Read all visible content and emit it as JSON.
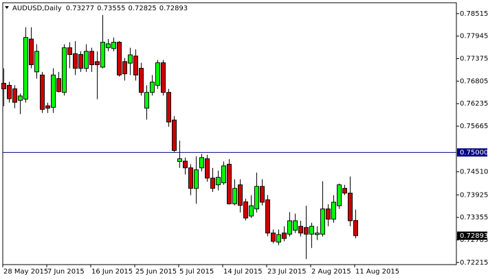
{
  "chart_data": {
    "type": "candlestick",
    "title": "AUDUSD,Daily",
    "categories": [
      "28 May 2015",
      null,
      null,
      null,
      null,
      null,
      null,
      null,
      "7 Jun 2015",
      null,
      null,
      null,
      null,
      null,
      null,
      null,
      "16 Jun 2015",
      null,
      null,
      null,
      null,
      null,
      null,
      null,
      "25 Jun 2015",
      null,
      null,
      null,
      null,
      null,
      null,
      null,
      "5 Jul 2015",
      null,
      null,
      null,
      null,
      null,
      null,
      null,
      "14 Jul 2015",
      null,
      null,
      null,
      null,
      null,
      null,
      null,
      "23 Jul 2015",
      null,
      null,
      null,
      null,
      null,
      null,
      null,
      "2 Aug 2015",
      null,
      null,
      null,
      null,
      null,
      null,
      null,
      "11 Aug 2015"
    ],
    "open": [
      0.7675,
      0.767,
      0.7661,
      0.7632,
      0.7635,
      0.7787,
      0.7704,
      0.7696,
      0.7618,
      0.7614,
      0.7687,
      0.7652,
      0.7765,
      0.775,
      0.7748,
      0.7713,
      0.7756,
      0.773,
      0.7716,
      0.7765,
      0.7763,
      0.7779,
      0.773,
      0.7726,
      0.7744,
      0.7713,
      0.7612,
      0.7652,
      0.767,
      0.7727,
      0.7652,
      0.7582,
      0.7477,
      0.7478,
      0.7461,
      0.7409,
      0.7461,
      0.7484,
      0.7435,
      0.7418,
      0.7423,
      0.747,
      0.737,
      0.7418,
      0.7375,
      0.7339,
      0.7357,
      0.7414,
      0.738,
      0.7296,
      0.7273,
      0.7296,
      0.7293,
      0.7303,
      0.7313,
      0.731,
      0.7293,
      0.7292,
      0.7293,
      0.7357,
      0.7331,
      0.7365,
      0.7409,
      0.7397,
      0.73277
    ],
    "high": [
      0.7713,
      0.7679,
      0.767,
      0.7649,
      0.7817,
      0.7817,
      0.7774,
      0.7704,
      0.7626,
      0.7713,
      0.7704,
      0.7774,
      0.7779,
      0.7782,
      0.7756,
      0.7774,
      0.7765,
      0.7756,
      0.7848,
      0.7787,
      0.7791,
      0.7782,
      0.7739,
      0.7765,
      0.7761,
      0.7727,
      0.767,
      0.7696,
      0.7734,
      0.7734,
      0.7661,
      0.7592,
      0.753,
      0.7487,
      0.747,
      0.749,
      0.7496,
      0.7494,
      0.7461,
      0.7454,
      0.7477,
      0.7483,
      0.7432,
      0.7432,
      0.7383,
      0.7392,
      0.7449,
      0.7432,
      0.7392,
      0.7305,
      0.7305,
      0.7313,
      0.7349,
      0.7345,
      0.7327,
      0.7365,
      0.7322,
      0.7313,
      0.7427,
      0.7369,
      0.7392,
      0.7421,
      0.7418,
      0.7439,
      0.73555
    ],
    "low": [
      0.7617,
      0.7626,
      0.7612,
      0.7597,
      0.7626,
      0.7713,
      0.7687,
      0.76,
      0.76,
      0.76,
      0.7652,
      0.7644,
      0.7713,
      0.7696,
      0.7704,
      0.7704,
      0.7704,
      0.7635,
      0.7713,
      0.7756,
      0.7756,
      0.7692,
      0.7682,
      0.7696,
      0.7682,
      0.7644,
      0.7583,
      0.7644,
      0.7661,
      0.7644,
      0.7565,
      0.7501,
      0.7461,
      0.7444,
      0.7392,
      0.737,
      0.7452,
      0.7426,
      0.74,
      0.7404,
      0.7418,
      0.7368,
      0.7366,
      0.7348,
      0.7328,
      0.7334,
      0.7348,
      0.7366,
      0.7288,
      0.727,
      0.7265,
      0.7275,
      0.7287,
      0.7296,
      0.7287,
      0.723,
      0.7258,
      0.7278,
      0.7287,
      0.7313,
      0.7322,
      0.7357,
      0.7392,
      0.7313,
      0.72825
    ],
    "close": [
      0.7661,
      0.7636,
      0.7627,
      0.7643,
      0.7791,
      0.7722,
      0.7756,
      0.7609,
      0.7612,
      0.7696,
      0.7654,
      0.7765,
      0.7748,
      0.7713,
      0.7713,
      0.7756,
      0.7722,
      0.7722,
      0.7779,
      0.7775,
      0.7779,
      0.7696,
      0.7699,
      0.7747,
      0.7696,
      0.7652,
      0.7652,
      0.7678,
      0.7727,
      0.7652,
      0.7577,
      0.7505,
      0.7484,
      0.7461,
      0.7409,
      0.7456,
      0.7487,
      0.7435,
      0.7409,
      0.7437,
      0.7466,
      0.737,
      0.7409,
      0.7366,
      0.7334,
      0.7365,
      0.7414,
      0.7374,
      0.7296,
      0.7275,
      0.7292,
      0.7282,
      0.7327,
      0.7327,
      0.7296,
      0.7293,
      0.7313,
      0.7296,
      0.7357,
      0.7331,
      0.7374,
      0.7418,
      0.7397,
      0.7327,
      0.72893
    ],
    "up_color": "#00ff00",
    "down_color": "#cc0000",
    "ylim": [
      0.7216,
      0.7879
    ],
    "yticks": [
      0.78515,
      0.77945,
      0.77375,
      0.76805,
      0.76235,
      0.75665,
      {
        "value": 0.7451,
        "label": "0.74510"
      },
      0.73925,
      0.73355,
      0.72785,
      0.72215
    ],
    "hline": {
      "value": 0.75,
      "label": "0.75000",
      "color": "#000080"
    },
    "grid": false
  }
}
